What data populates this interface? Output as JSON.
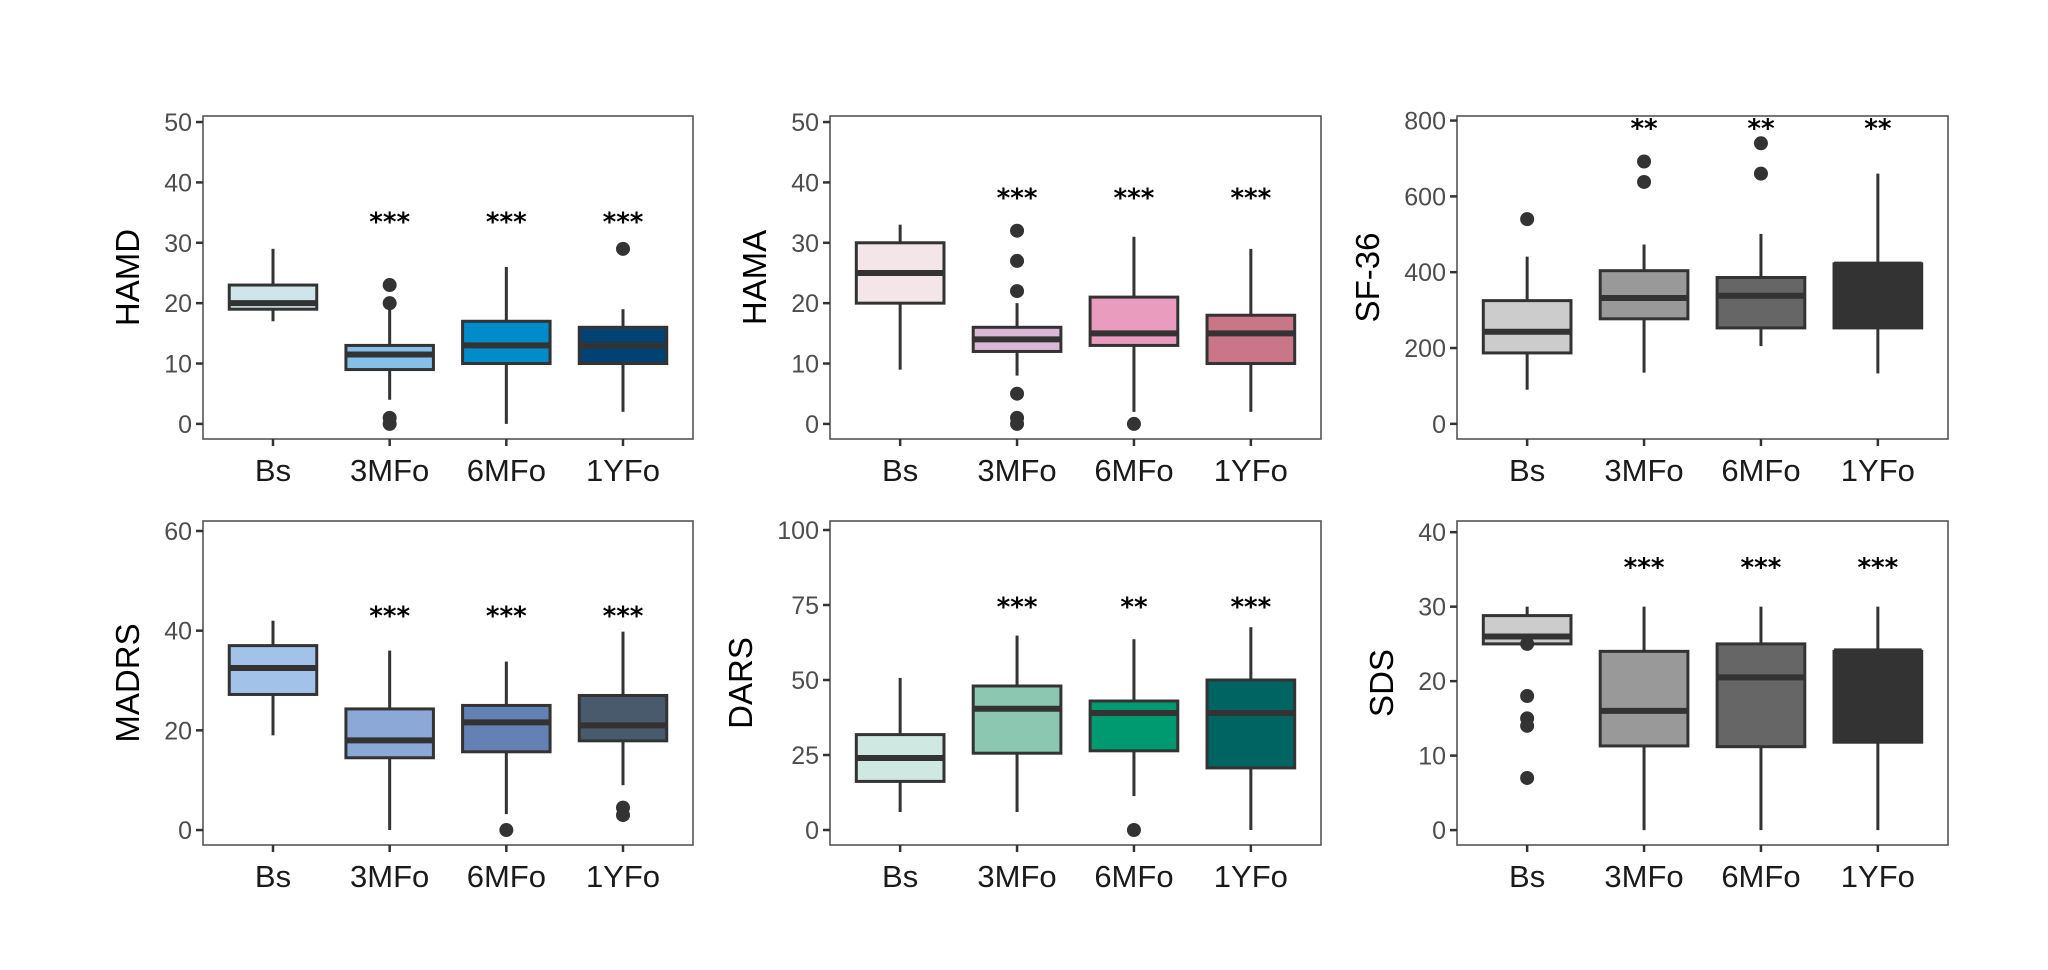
{
  "chart_data": [
    {
      "type": "boxplot",
      "ylabel": "HAMD",
      "categories": [
        "Bs",
        "3MFo",
        "6MFo",
        "1YFo"
      ],
      "ylim": [
        -2.5,
        51
      ],
      "yticks": [
        0,
        10,
        20,
        30,
        40,
        50
      ],
      "colors": [
        "#cfe5ea",
        "#85c0e8",
        "#008bcb",
        "#004272"
      ],
      "boxes": [
        {
          "whisker_low": 17,
          "q1": 19,
          "median": 20,
          "q3": 23,
          "whisker_high": 29,
          "outliers": []
        },
        {
          "whisker_low": 4,
          "q1": 9,
          "median": 11.5,
          "q3": 13,
          "whisker_high": 19,
          "outliers": [
            23,
            20,
            1,
            0
          ]
        },
        {
          "whisker_low": 0,
          "q1": 10,
          "median": 13,
          "q3": 17,
          "whisker_high": 26,
          "outliers": []
        },
        {
          "whisker_low": 2,
          "q1": 10,
          "median": 13,
          "q3": 16,
          "whisker_high": 19,
          "outliers": [
            29
          ]
        }
      ],
      "significance": [
        "",
        "***",
        "***",
        "***"
      ],
      "significance_y": 34
    },
    {
      "type": "boxplot",
      "ylabel": "HAMA",
      "categories": [
        "Bs",
        "3MFo",
        "6MFo",
        "1YFo"
      ],
      "ylim": [
        -2.5,
        51
      ],
      "yticks": [
        0,
        10,
        20,
        30,
        40,
        50
      ],
      "colors": [
        "#f3e5e8",
        "#dab7d5",
        "#e99cbd",
        "#c97689"
      ],
      "boxes": [
        {
          "whisker_low": 9,
          "q1": 20,
          "median": 25,
          "q3": 30,
          "whisker_high": 33,
          "outliers": []
        },
        {
          "whisker_low": 8,
          "q1": 12,
          "median": 14,
          "q3": 16,
          "whisker_high": 20,
          "outliers": [
            32,
            27,
            22,
            5,
            1,
            0
          ]
        },
        {
          "whisker_low": 2,
          "q1": 13,
          "median": 15,
          "q3": 21,
          "whisker_high": 31,
          "outliers": [
            0
          ]
        },
        {
          "whisker_low": 2,
          "q1": 10,
          "median": 15,
          "q3": 18,
          "whisker_high": 29,
          "outliers": []
        }
      ],
      "significance": [
        "",
        "***",
        "***",
        "***"
      ],
      "significance_y": 38
    },
    {
      "type": "boxplot",
      "ylabel": "SF-36",
      "categories": [
        "Bs",
        "3MFo",
        "6MFo",
        "1YFo"
      ],
      "ylim": [
        -40,
        812
      ],
      "yticks": [
        0,
        200,
        400,
        600,
        800
      ],
      "colors": [
        "#cccccc",
        "#999999",
        "#666666",
        "#333333"
      ],
      "boxes": [
        {
          "whisker_low": 90,
          "q1": 187,
          "median": 243,
          "q3": 325,
          "whisker_high": 441,
          "outliers": [
            540
          ]
        },
        {
          "whisker_low": 135,
          "q1": 277,
          "median": 332,
          "q3": 404,
          "whisker_high": 473,
          "outliers": [
            692,
            638
          ]
        },
        {
          "whisker_low": 205,
          "q1": 253,
          "median": 338,
          "q3": 386,
          "whisker_high": 501,
          "outliers": [
            740,
            660
          ]
        },
        {
          "whisker_low": 133,
          "q1": 253,
          "median": 420,
          "q3": 422,
          "whisker_high": 660,
          "outliers": []
        }
      ],
      "significance": [
        "",
        "**",
        "**",
        "**"
      ],
      "significance_y": 788
    },
    {
      "type": "boxplot",
      "ylabel": "MADRS",
      "categories": [
        "Bs",
        "3MFo",
        "6MFo",
        "1YFo"
      ],
      "ylim": [
        -3,
        62
      ],
      "yticks": [
        0,
        20,
        40,
        60
      ],
      "colors": [
        "#a2c2e9",
        "#8ba8d6",
        "#6481b4",
        "#4a5a6d"
      ],
      "boxes": [
        {
          "whisker_low": 19,
          "q1": 27.2,
          "median": 32.5,
          "q3": 37,
          "whisker_high": 42,
          "outliers": []
        },
        {
          "whisker_low": 0,
          "q1": 14.5,
          "median": 18,
          "q3": 24.3,
          "whisker_high": 36,
          "outliers": []
        },
        {
          "whisker_low": 3.2,
          "q1": 15.7,
          "median": 21.6,
          "q3": 25,
          "whisker_high": 33.8,
          "outliers": [
            0
          ]
        },
        {
          "whisker_low": 9,
          "q1": 17.9,
          "median": 21,
          "q3": 27,
          "whisker_high": 39.8,
          "outliers": [
            4.5,
            3
          ]
        }
      ],
      "significance": [
        "",
        "***",
        "***",
        "***"
      ],
      "significance_y": 43.6
    },
    {
      "type": "boxplot",
      "ylabel": "DARS",
      "categories": [
        "Bs",
        "3MFo",
        "6MFo",
        "1YFo"
      ],
      "ylim": [
        -5,
        103
      ],
      "yticks": [
        0,
        25,
        50,
        75,
        100
      ],
      "colors": [
        "#cfe8e1",
        "#8cc8b1",
        "#009a71",
        "#006462"
      ],
      "boxes": [
        {
          "whisker_low": 6,
          "q1": 16.2,
          "median": 24,
          "q3": 31.8,
          "whisker_high": 50.7,
          "outliers": []
        },
        {
          "whisker_low": 6,
          "q1": 25.6,
          "median": 40.4,
          "q3": 48,
          "whisker_high": 64.8,
          "outliers": []
        },
        {
          "whisker_low": 11.3,
          "q1": 26.4,
          "median": 39,
          "q3": 43,
          "whisker_high": 63.6,
          "outliers": [
            0
          ]
        },
        {
          "whisker_low": 0,
          "q1": 20.7,
          "median": 39,
          "q3": 50,
          "whisker_high": 67.6,
          "outliers": []
        }
      ],
      "significance": [
        "",
        "***",
        "**",
        "***"
      ],
      "significance_y": 75.5
    },
    {
      "type": "boxplot",
      "ylabel": "SDS",
      "categories": [
        "Bs",
        "3MFo",
        "6MFo",
        "1YFo"
      ],
      "ylim": [
        -2,
        41.5
      ],
      "yticks": [
        0,
        10,
        20,
        30,
        40
      ],
      "colors": [
        "#cccccc",
        "#999999",
        "#666666",
        "#333333"
      ],
      "boxes": [
        {
          "whisker_low": 25,
          "q1": 25,
          "median": 26,
          "q3": 28.8,
          "whisker_high": 30,
          "outliers": [
            25,
            18,
            15,
            14,
            7
          ]
        },
        {
          "whisker_low": 0,
          "q1": 11.3,
          "median": 16,
          "q3": 24,
          "whisker_high": 30,
          "outliers": []
        },
        {
          "whisker_low": 0,
          "q1": 11.2,
          "median": 20.5,
          "q3": 25,
          "whisker_high": 30,
          "outliers": []
        },
        {
          "whisker_low": 0,
          "q1": 11.8,
          "median": 24,
          "q3": 24,
          "whisker_high": 30,
          "outliers": []
        }
      ],
      "significance": [
        "",
        "***",
        "***",
        "***"
      ],
      "significance_y": 35.7
    }
  ]
}
